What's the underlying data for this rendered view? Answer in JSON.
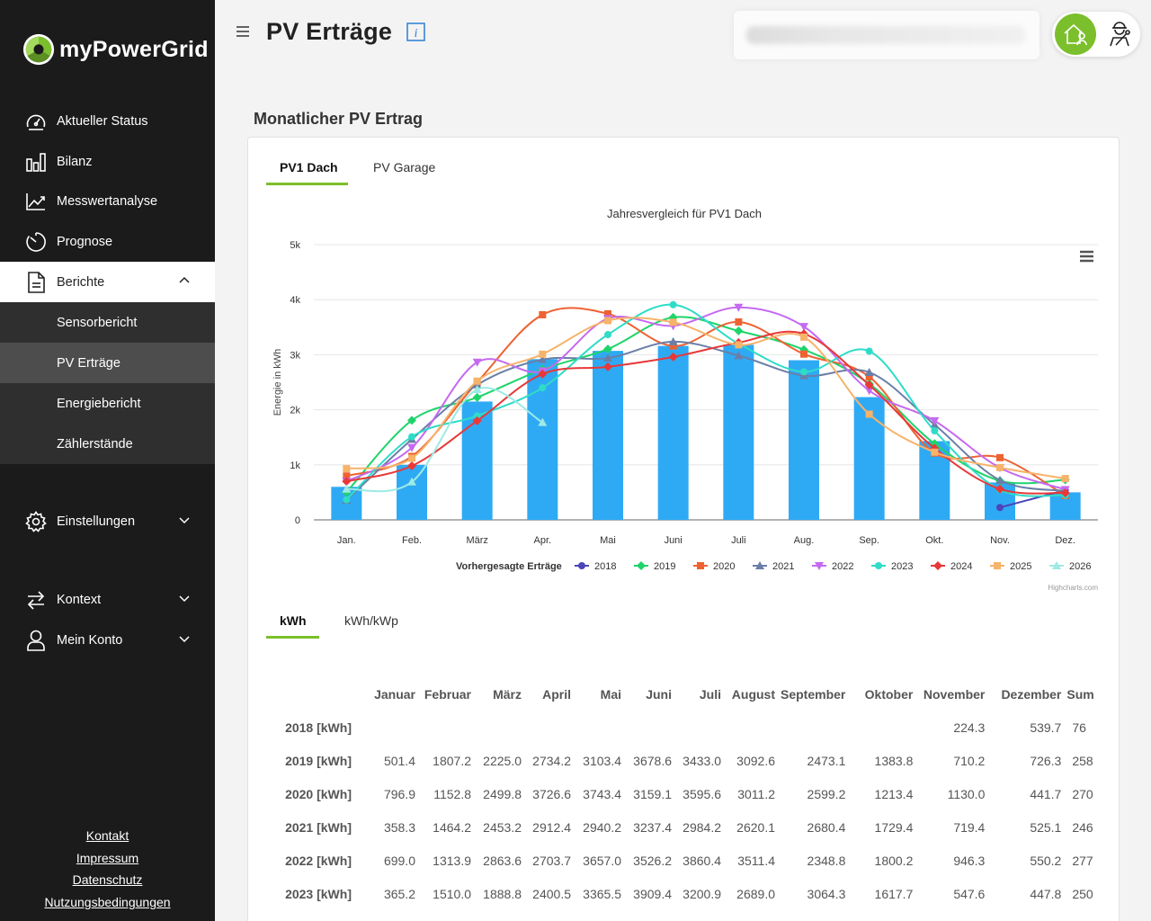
{
  "app": {
    "brand": "myPowerGrid",
    "page_title": "PV Erträge"
  },
  "sidebar": {
    "items": [
      {
        "label": "Aktueller Status",
        "icon": "dashboard-gauge-icon"
      },
      {
        "label": "Bilanz",
        "icon": "bar-chart-icon"
      },
      {
        "label": "Messwertanalyse",
        "icon": "line-chart-icon"
      },
      {
        "label": "Prognose",
        "icon": "timer-icon"
      },
      {
        "label": "Berichte",
        "icon": "document-icon"
      }
    ],
    "sub_items": [
      {
        "label": "Sensorbericht"
      },
      {
        "label": "PV Erträge"
      },
      {
        "label": "Energiebericht"
      },
      {
        "label": "Zählerstände"
      }
    ],
    "lower_items": [
      {
        "label": "Einstellungen",
        "icon": "gear-icon"
      },
      {
        "label": "Kontext",
        "icon": "swap-arrows-icon"
      },
      {
        "label": "Mein Konto",
        "icon": "user-icon"
      }
    ],
    "footer_links": [
      "Kontakt",
      "Impressum",
      "Datenschutz",
      "Nutzungsbedingungen"
    ]
  },
  "section": {
    "title": "Monatlicher PV Ertrag"
  },
  "tabs": {
    "plant": [
      "PV1 Dach",
      "PV Garage"
    ],
    "unit": [
      "kWh",
      "kWh/kWp"
    ]
  },
  "chart_data": {
    "type": "bar+line",
    "title": "Jahresvergleich für PV1 Dach",
    "ylabel": "Energie in kWh",
    "xlabel": "",
    "ylim": [
      0,
      5000
    ],
    "yticks": [
      "0",
      "1k",
      "2k",
      "3k",
      "4k",
      "5k"
    ],
    "categories": [
      "Jan.",
      "Feb.",
      "März",
      "Apr.",
      "Mai",
      "Juni",
      "Juli",
      "Aug.",
      "Sep.",
      "Okt.",
      "Nov.",
      "Dez."
    ],
    "legend_position": "bottom",
    "credits": "Highcharts.com",
    "bar_series": {
      "name": "Vorhergesagte Erträge",
      "color": "#2eaaf5",
      "values": [
        600,
        1000,
        2150,
        2920,
        3070,
        3160,
        3180,
        2900,
        2230,
        1430,
        680,
        500
      ]
    },
    "series": [
      {
        "name": "2018",
        "color": "#4b45b8",
        "marker": "circle",
        "values": [
          null,
          null,
          null,
          null,
          null,
          null,
          null,
          null,
          null,
          null,
          224.3,
          539.7
        ]
      },
      {
        "name": "2019",
        "color": "#1ed46a",
        "marker": "diamond",
        "values": [
          501.4,
          1807.2,
          2225.0,
          2734.2,
          3103.4,
          3678.6,
          3433.0,
          3092.6,
          2473.1,
          1383.8,
          710.2,
          726.3
        ]
      },
      {
        "name": "2020",
        "color": "#ee6232",
        "marker": "square",
        "values": [
          796.9,
          1152.8,
          2499.8,
          3726.6,
          3743.4,
          3159.1,
          3595.6,
          3011.2,
          2599.2,
          1213.4,
          1130.0,
          441.7
        ]
      },
      {
        "name": "2021",
        "color": "#6a7fa8",
        "marker": "triangle",
        "values": [
          358.3,
          1464.2,
          2453.2,
          2912.4,
          2940.2,
          3237.4,
          2984.2,
          2620.1,
          2680.4,
          1729.4,
          719.4,
          525.1
        ]
      },
      {
        "name": "2022",
        "color": "#c56af0",
        "marker": "triangle-down",
        "values": [
          699.0,
          1313.9,
          2863.6,
          2703.7,
          3657.0,
          3526.2,
          3860.4,
          3511.4,
          2348.8,
          1800.2,
          946.3,
          550.2
        ]
      },
      {
        "name": "2023",
        "color": "#2fdcc8",
        "marker": "circle",
        "values": [
          365.2,
          1510.0,
          1888.8,
          2400.5,
          3365.5,
          3909.4,
          3200.9,
          2689.0,
          3064.3,
          1617.7,
          547.6,
          447.8
        ]
      },
      {
        "name": "2024",
        "color": "#e83838",
        "marker": "diamond",
        "values": [
          700,
          980,
          1800,
          2650,
          2780,
          2960,
          3220,
          3380,
          2450,
          1300,
          560,
          490
        ]
      },
      {
        "name": "2025",
        "color": "#f6b36a",
        "marker": "square",
        "values": [
          930,
          1120,
          2520,
          3010,
          3620,
          3590,
          3180,
          3320,
          1920,
          1230,
          950,
          750
        ]
      },
      {
        "name": "2026",
        "color": "#9eeae4",
        "marker": "triangle",
        "values": [
          560,
          690,
          2370,
          1770,
          null,
          null,
          null,
          null,
          null,
          null,
          null,
          null
        ]
      }
    ]
  },
  "table": {
    "columns": [
      "Januar",
      "Februar",
      "März",
      "April",
      "Mai",
      "Juni",
      "Juli",
      "August",
      "September",
      "Oktober",
      "November",
      "Dezember",
      "Sum"
    ],
    "rows": [
      {
        "label": "2018 [kWh]",
        "cells": [
          "",
          "",
          "",
          "",
          "",
          "",
          "",
          "",
          "",
          "",
          "224.3",
          "539.7",
          "76"
        ]
      },
      {
        "label": "2019 [kWh]",
        "cells": [
          "501.4",
          "1807.2",
          "2225.0",
          "2734.2",
          "3103.4",
          "3678.6",
          "3433.0",
          "3092.6",
          "2473.1",
          "1383.8",
          "710.2",
          "726.3",
          "258"
        ]
      },
      {
        "label": "2020 [kWh]",
        "cells": [
          "796.9",
          "1152.8",
          "2499.8",
          "3726.6",
          "3743.4",
          "3159.1",
          "3595.6",
          "3011.2",
          "2599.2",
          "1213.4",
          "1130.0",
          "441.7",
          "270"
        ]
      },
      {
        "label": "2021 [kWh]",
        "cells": [
          "358.3",
          "1464.2",
          "2453.2",
          "2912.4",
          "2940.2",
          "3237.4",
          "2984.2",
          "2620.1",
          "2680.4",
          "1729.4",
          "719.4",
          "525.1",
          "246"
        ]
      },
      {
        "label": "2022 [kWh]",
        "cells": [
          "699.0",
          "1313.9",
          "2863.6",
          "2703.7",
          "3657.0",
          "3526.2",
          "3860.4",
          "3511.4",
          "2348.8",
          "1800.2",
          "946.3",
          "550.2",
          "277"
        ]
      },
      {
        "label": "2023 [kWh]",
        "cells": [
          "365.2",
          "1510.0",
          "1888.8",
          "2400.5",
          "3365.5",
          "3909.4",
          "3200.9",
          "2689.0",
          "3064.3",
          "1617.7",
          "547.6",
          "447.8",
          "250"
        ]
      }
    ]
  }
}
